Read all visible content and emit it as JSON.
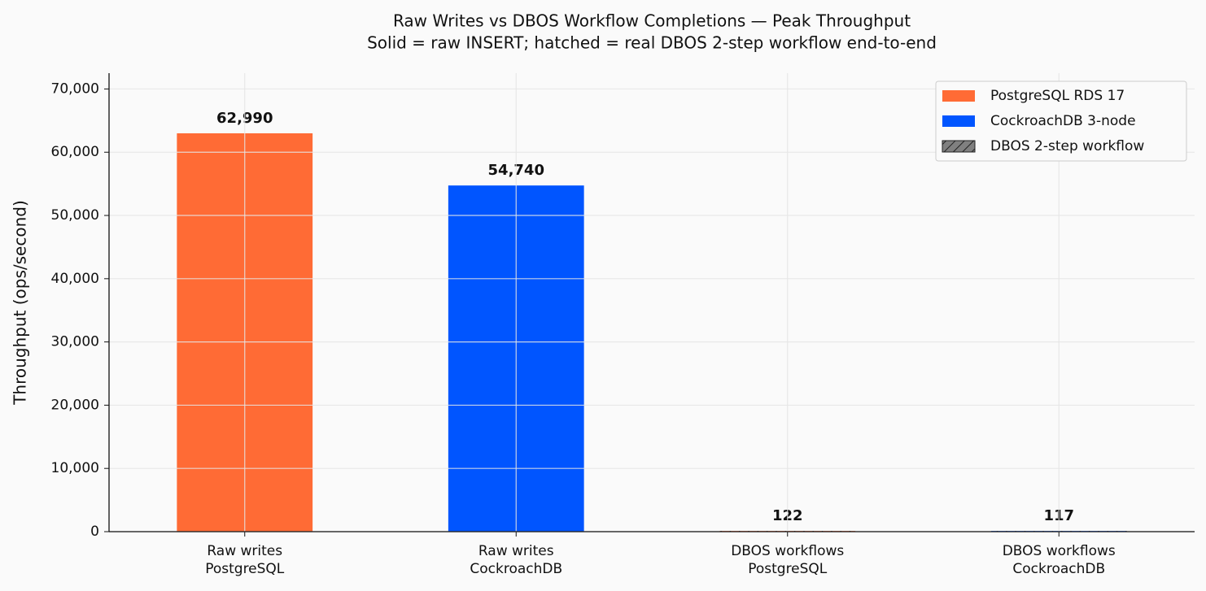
{
  "chart_data": {
    "type": "bar",
    "title": "Raw Writes vs DBOS Workflow Completions — Peak Throughput",
    "subtitle": "Solid = raw INSERT; hatched = real DBOS 2-step workflow end-to-end",
    "y_label": "Throughput (ops/second)",
    "categories": [
      [
        "Raw writes",
        "PostgreSQL"
      ],
      [
        "Raw writes",
        "CockroachDB"
      ],
      [
        "DBOS workflows",
        "PostgreSQL"
      ],
      [
        "DBOS workflows",
        "CockroachDB"
      ]
    ],
    "values": [
      62990,
      54740,
      122,
      117
    ],
    "value_labels": [
      "62,990",
      "54,740",
      "122",
      "117"
    ],
    "colors": [
      "#ff6b35",
      "#0055ff",
      "#ff6b35",
      "#0055ff"
    ],
    "hatched": [
      false,
      false,
      true,
      true
    ],
    "legend": [
      {
        "label": "PostgreSQL RDS 17",
        "color": "#ff6b35",
        "hatched": false
      },
      {
        "label": "CockroachDB 3-node",
        "color": "#0055ff",
        "hatched": false
      },
      {
        "label": "DBOS 2-step workflow",
        "color": "#808080",
        "hatched": true
      }
    ],
    "legend_position": "upper right",
    "ylim": [
      0,
      72500
    ],
    "yticks": [
      0,
      {
        "value": 10000,
        "label": "10,000"
      },
      {
        "value": 20000,
        "label": "20,000"
      },
      {
        "value": 30000,
        "label": "30,000"
      },
      {
        "value": 40000,
        "label": "40,000"
      },
      {
        "value": 50000,
        "label": "50,000"
      },
      {
        "value": 60000,
        "label": "60,000"
      },
      {
        "value": 70000,
        "label": "70,000"
      }
    ],
    "grid": true
  }
}
